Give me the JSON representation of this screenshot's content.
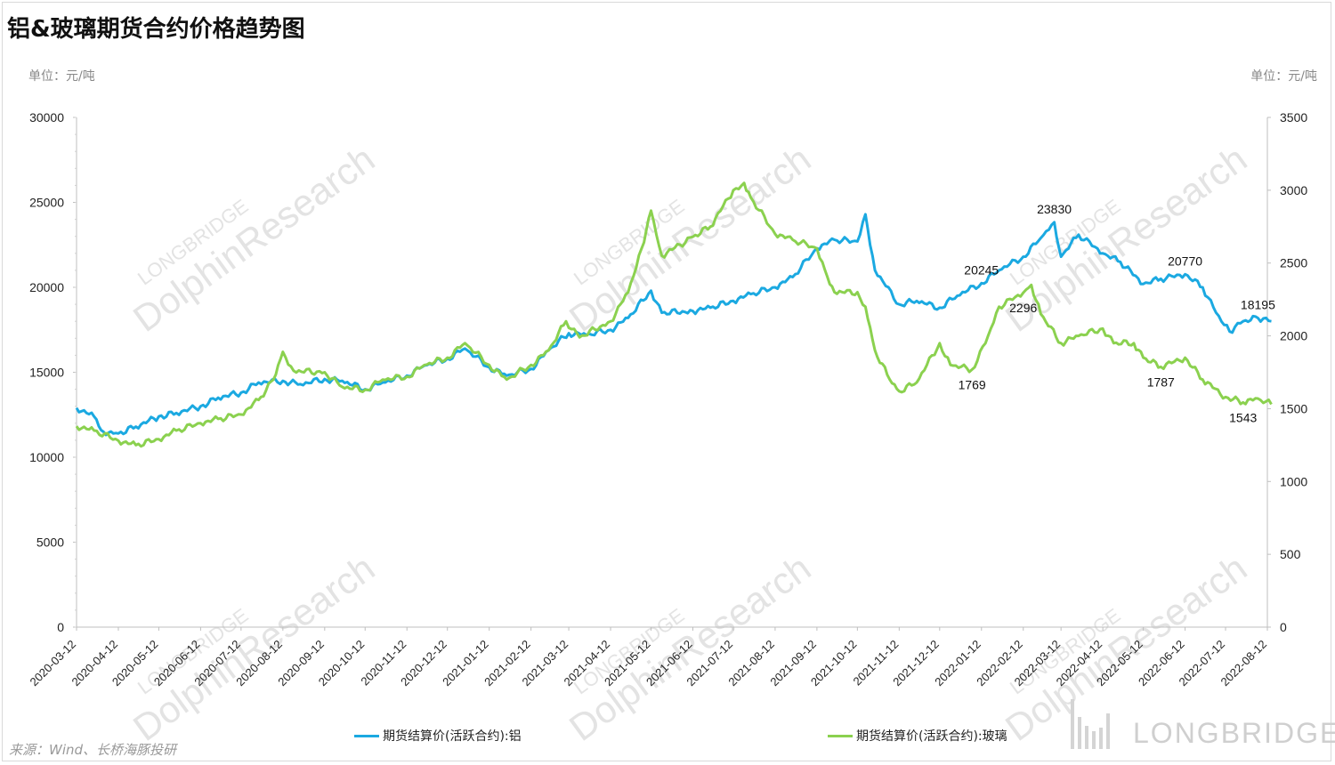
{
  "title": "铝&玻璃期货合约价格趋势图",
  "unit_left": "单位：元/吨",
  "unit_right": "单位：元/吨",
  "source": "来源：Wind、长桥海豚投研",
  "brand": "LONGBRIDGE",
  "watermark": {
    "line1": "LONGBRIDGE",
    "line2": "DolphinResearch"
  },
  "colors": {
    "aluminum": "#1ba9e1",
    "glass": "#8bd14f"
  },
  "chart_data": {
    "type": "line",
    "x": [
      "2020-03-12",
      "2020-04-12",
      "2020-05-12",
      "2020-06-12",
      "2020-07-12",
      "2020-08-12",
      "2020-09-12",
      "2020-10-12",
      "2020-11-12",
      "2020-12-12",
      "2021-01-12",
      "2021-02-12",
      "2021-03-12",
      "2021-04-12",
      "2021-05-12",
      "2021-06-12",
      "2021-07-12",
      "2021-08-12",
      "2021-09-12",
      "2021-10-12",
      "2021-11-12",
      "2021-12-12",
      "2022-01-12",
      "2022-02-12",
      "2022-03-12",
      "2022-04-12",
      "2022-05-12",
      "2022-06-12",
      "2022-07-12",
      "2022-08-12"
    ],
    "ylim_left": [
      0,
      30000
    ],
    "ylim_right": [
      0,
      3500
    ],
    "yticks_left": [
      "0",
      "5000",
      "10000",
      "15000",
      "20000",
      "25000",
      "30000"
    ],
    "yticks_right": [
      "0",
      "500",
      "1000",
      "1500",
      "2000",
      "2500",
      "3000",
      "3500"
    ],
    "series": [
      {
        "name": "期货结算价(活跃合约):铝",
        "axis": "left",
        "points": [
          [
            "2020-03-12",
            12900
          ],
          [
            "2020-03-25",
            12400
          ],
          [
            "2020-04-01",
            11500
          ],
          [
            "2020-04-12",
            11400
          ],
          [
            "2020-04-25",
            11800
          ],
          [
            "2020-05-12",
            12400
          ],
          [
            "2020-05-25",
            12600
          ],
          [
            "2020-06-12",
            13000
          ],
          [
            "2020-06-25",
            13500
          ],
          [
            "2020-07-12",
            13800
          ],
          [
            "2020-07-25",
            14400
          ],
          [
            "2020-08-12",
            14500
          ],
          [
            "2020-08-25",
            14300
          ],
          [
            "2020-09-12",
            14600
          ],
          [
            "2020-09-25",
            14500
          ],
          [
            "2020-10-12",
            14000
          ],
          [
            "2020-10-25",
            14400
          ],
          [
            "2020-11-12",
            14800
          ],
          [
            "2020-11-25",
            15400
          ],
          [
            "2020-12-12",
            15800
          ],
          [
            "2020-12-25",
            16400
          ],
          [
            "2021-01-12",
            15300
          ],
          [
            "2021-01-25",
            14800
          ],
          [
            "2021-02-12",
            15200
          ],
          [
            "2021-02-25",
            16300
          ],
          [
            "2021-03-12",
            17300
          ],
          [
            "2021-03-25",
            17200
          ],
          [
            "2021-04-12",
            17500
          ],
          [
            "2021-04-25",
            18200
          ],
          [
            "2021-05-12",
            19800
          ],
          [
            "2021-05-20",
            18500
          ],
          [
            "2021-06-12",
            18600
          ],
          [
            "2021-06-25",
            18800
          ],
          [
            "2021-07-12",
            19200
          ],
          [
            "2021-07-25",
            19600
          ],
          [
            "2021-08-12",
            20000
          ],
          [
            "2021-08-25",
            20600
          ],
          [
            "2021-09-12",
            22300
          ],
          [
            "2021-09-25",
            22800
          ],
          [
            "2021-10-12",
            22700
          ],
          [
            "2021-10-18",
            24300
          ],
          [
            "2021-10-25",
            21000
          ],
          [
            "2021-11-12",
            19000
          ],
          [
            "2021-11-25",
            19200
          ],
          [
            "2021-12-12",
            18800
          ],
          [
            "2021-12-25",
            19500
          ],
          [
            "2022-01-12",
            20245
          ],
          [
            "2022-01-25",
            21000
          ],
          [
            "2022-02-12",
            21800
          ],
          [
            "2022-02-25",
            22900
          ],
          [
            "2022-03-07",
            23830
          ],
          [
            "2022-03-12",
            21800
          ],
          [
            "2022-03-25",
            23100
          ],
          [
            "2022-04-12",
            22000
          ],
          [
            "2022-04-25",
            21500
          ],
          [
            "2022-05-12",
            20200
          ],
          [
            "2022-05-25",
            20500
          ],
          [
            "2022-06-12",
            20770
          ],
          [
            "2022-06-25",
            20000
          ],
          [
            "2022-07-05",
            18500
          ],
          [
            "2022-07-15",
            17400
          ],
          [
            "2022-07-25",
            18000
          ],
          [
            "2022-08-05",
            18195
          ],
          [
            "2022-08-15",
            18000
          ]
        ]
      },
      {
        "name": "期货结算价(活跃合约):玻璃",
        "axis": "right",
        "points": [
          [
            "2020-03-12",
            1380
          ],
          [
            "2020-03-25",
            1350
          ],
          [
            "2020-04-12",
            1280
          ],
          [
            "2020-04-25",
            1250
          ],
          [
            "2020-05-12",
            1290
          ],
          [
            "2020-05-25",
            1350
          ],
          [
            "2020-06-12",
            1400
          ],
          [
            "2020-06-25",
            1430
          ],
          [
            "2020-07-12",
            1460
          ],
          [
            "2020-07-25",
            1560
          ],
          [
            "2020-08-05",
            1700
          ],
          [
            "2020-08-12",
            1890
          ],
          [
            "2020-08-20",
            1760
          ],
          [
            "2020-09-12",
            1750
          ],
          [
            "2020-09-25",
            1650
          ],
          [
            "2020-10-12",
            1630
          ],
          [
            "2020-10-25",
            1700
          ],
          [
            "2020-11-12",
            1720
          ],
          [
            "2020-11-25",
            1800
          ],
          [
            "2020-12-12",
            1850
          ],
          [
            "2020-12-25",
            1950
          ],
          [
            "2021-01-12",
            1800
          ],
          [
            "2021-01-25",
            1700
          ],
          [
            "2021-02-12",
            1800
          ],
          [
            "2021-02-25",
            1900
          ],
          [
            "2021-03-10",
            2100
          ],
          [
            "2021-03-20",
            1990
          ],
          [
            "2021-04-12",
            2100
          ],
          [
            "2021-04-25",
            2300
          ],
          [
            "2021-05-05",
            2600
          ],
          [
            "2021-05-12",
            2860
          ],
          [
            "2021-05-20",
            2550
          ],
          [
            "2021-06-12",
            2680
          ],
          [
            "2021-06-25",
            2750
          ],
          [
            "2021-07-12",
            3000
          ],
          [
            "2021-07-20",
            3050
          ],
          [
            "2021-07-25",
            2950
          ],
          [
            "2021-08-12",
            2700
          ],
          [
            "2021-08-25",
            2660
          ],
          [
            "2021-09-12",
            2600
          ],
          [
            "2021-09-18",
            2450
          ],
          [
            "2021-09-25",
            2300
          ],
          [
            "2021-10-12",
            2300
          ],
          [
            "2021-10-18",
            2200
          ],
          [
            "2021-10-25",
            1900
          ],
          [
            "2021-11-05",
            1700
          ],
          [
            "2021-11-12",
            1620
          ],
          [
            "2021-11-25",
            1680
          ],
          [
            "2021-12-12",
            1950
          ],
          [
            "2021-12-20",
            1800
          ],
          [
            "2022-01-05",
            1769
          ],
          [
            "2022-01-15",
            1950
          ],
          [
            "2022-01-25",
            2200
          ],
          [
            "2022-02-12",
            2296
          ],
          [
            "2022-02-18",
            2350
          ],
          [
            "2022-02-25",
            2150
          ],
          [
            "2022-03-12",
            1950
          ],
          [
            "2022-03-25",
            2000
          ],
          [
            "2022-04-12",
            2050
          ],
          [
            "2022-04-20",
            1950
          ],
          [
            "2022-05-05",
            1950
          ],
          [
            "2022-05-12",
            1850
          ],
          [
            "2022-05-25",
            1787
          ],
          [
            "2022-06-12",
            1850
          ],
          [
            "2022-06-25",
            1700
          ],
          [
            "2022-07-12",
            1580
          ],
          [
            "2022-07-25",
            1543
          ],
          [
            "2022-08-05",
            1570
          ],
          [
            "2022-08-15",
            1530
          ]
        ]
      }
    ],
    "data_labels": [
      {
        "series": 0,
        "x": "2022-01-12",
        "y": 20245,
        "text": "20245"
      },
      {
        "series": 0,
        "x": "2022-03-07",
        "y": 23830,
        "text": "23830"
      },
      {
        "series": 0,
        "x": "2022-06-12",
        "y": 20770,
        "text": "20770"
      },
      {
        "series": 0,
        "x": "2022-08-05",
        "y": 18195,
        "text": "18195"
      },
      {
        "series": 1,
        "x": "2022-01-05",
        "y": 1769,
        "text": "1769"
      },
      {
        "series": 1,
        "x": "2022-02-12",
        "y": 2296,
        "text": "2296"
      },
      {
        "series": 1,
        "x": "2022-05-25",
        "y": 1787,
        "text": "1787"
      },
      {
        "series": 1,
        "x": "2022-07-25",
        "y": 1543,
        "text": "1543"
      }
    ],
    "legend_position": "bottom"
  }
}
